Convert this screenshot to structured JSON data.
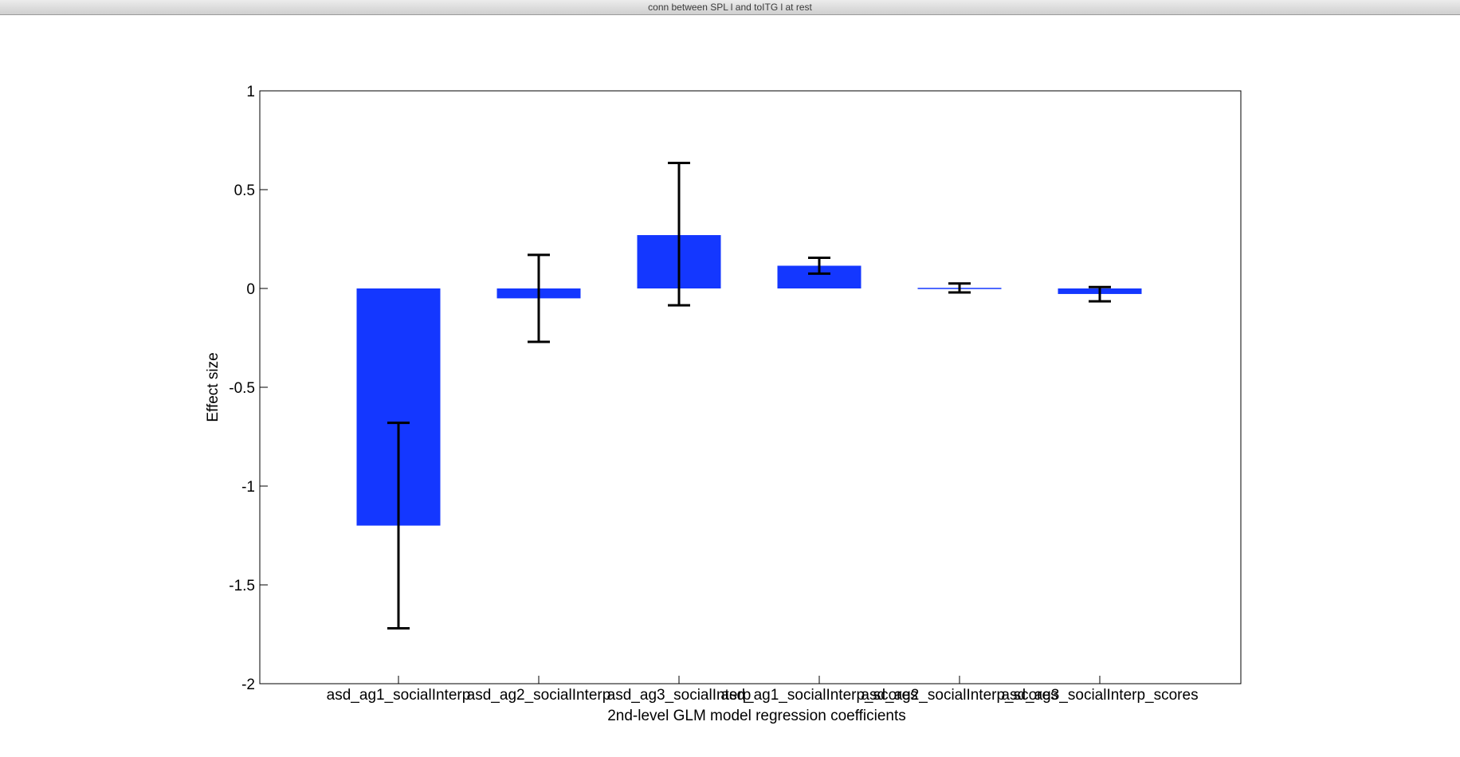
{
  "window": {
    "title": "conn between SPL l  and toITG l  at rest"
  },
  "chart_data": {
    "type": "bar",
    "categories": [
      "asd_ag1_socialInterp",
      "asd_ag2_socialInterp",
      "asd_ag3_socialInterp",
      "asd_ag1_socialInterp_scores",
      "asd_ag2_socialInterp_scores",
      "asd_ag3_socialInterp_scores"
    ],
    "values": [
      -1.2,
      -0.05,
      0.27,
      0.115,
      0.003,
      -0.028
    ],
    "error_low": [
      -1.72,
      -0.27,
      -0.085,
      0.075,
      -0.02,
      -0.065
    ],
    "error_high": [
      -0.68,
      0.17,
      0.635,
      0.155,
      0.025,
      0.007
    ],
    "xlabel": "2nd-level GLM model regression coefficients",
    "ylabel": "Effect size",
    "ylim": [
      -2,
      1
    ],
    "yticks": [
      -2,
      -1.5,
      -1,
      -0.5,
      0,
      0.5,
      1
    ],
    "ytick_labels": [
      "-2",
      "-1.5",
      "-1",
      "-0.5",
      "0",
      "0.5",
      "1"
    ],
    "bar_color": "#1437ff",
    "error_color": "#000000",
    "grid": false
  }
}
